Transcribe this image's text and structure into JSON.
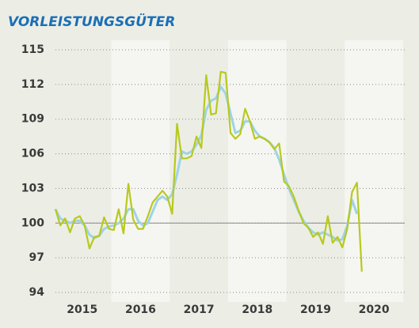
{
  "chart_data": {
    "type": "line",
    "title": "VORLEISTUNGSGÜTER",
    "categories": [
      null,
      null,
      null,
      null,
      null,
      null,
      null,
      null,
      null,
      null,
      null,
      null,
      null,
      null,
      null,
      null,
      null,
      null,
      null,
      null,
      null,
      null,
      null,
      null,
      null,
      null,
      null,
      null,
      null,
      null,
      null,
      null,
      null,
      null,
      null,
      null,
      null,
      null,
      null,
      null,
      null,
      null,
      null,
      null,
      null,
      null,
      null,
      null,
      null,
      null,
      null,
      null,
      null,
      null,
      null,
      null,
      null,
      null,
      null,
      null,
      null,
      null,
      null,
      null
    ],
    "year_labels": [
      "2015",
      "2016",
      "2017",
      "2018",
      "2019",
      "2020"
    ],
    "series": [
      {
        "color": "#9fd3e6",
        "values": [
          101.2,
          100.4,
          100.2,
          100.0,
          100.2,
          100.2,
          99.8,
          99.0,
          98.7,
          98.9,
          99.5,
          99.7,
          99.8,
          100.0,
          100.4,
          101.2,
          101.2,
          100.2,
          99.8,
          100.0,
          101.0,
          102.0,
          102.3,
          102.0,
          102.5,
          104.2,
          106.2,
          106.0,
          106.2,
          106.8,
          107.6,
          109.8,
          110.6,
          110.8,
          111.8,
          111.2,
          109.5,
          107.8,
          108.0,
          108.8,
          108.8,
          108.0,
          107.5,
          107.3,
          107.0,
          106.5,
          105.5,
          104.2,
          103.0,
          102.0,
          101.0,
          100.2,
          99.6,
          99.2,
          99.0,
          99.2,
          99.0,
          98.8,
          98.5,
          98.6,
          99.8,
          102.0,
          100.8,
          null
        ]
      },
      {
        "color": "#b8c91e",
        "values": [
          101.2,
          99.8,
          100.4,
          99.2,
          100.4,
          100.6,
          99.8,
          97.8,
          98.8,
          98.9,
          100.5,
          99.5,
          99.4,
          101.2,
          99.1,
          103.4,
          100.3,
          99.5,
          99.5,
          100.6,
          101.8,
          102.3,
          102.8,
          102.3,
          100.8,
          108.6,
          105.6,
          105.6,
          105.8,
          107.5,
          106.5,
          112.8,
          109.4,
          109.5,
          113.1,
          113.0,
          107.8,
          107.3,
          107.7,
          109.9,
          108.8,
          107.3,
          107.5,
          107.3,
          107.0,
          106.4,
          106.9,
          103.6,
          103.2,
          102.3,
          101.1,
          100.0,
          99.6,
          98.8,
          99.2,
          98.2,
          100.6,
          98.3,
          98.8,
          97.9,
          99.5,
          102.7,
          103.5,
          95.8
        ]
      }
    ],
    "ylim": [
      94,
      115
    ],
    "yticks": [
      94,
      97,
      100,
      103,
      106,
      109,
      112,
      115
    ],
    "reference_line": 100,
    "grid": true
  }
}
